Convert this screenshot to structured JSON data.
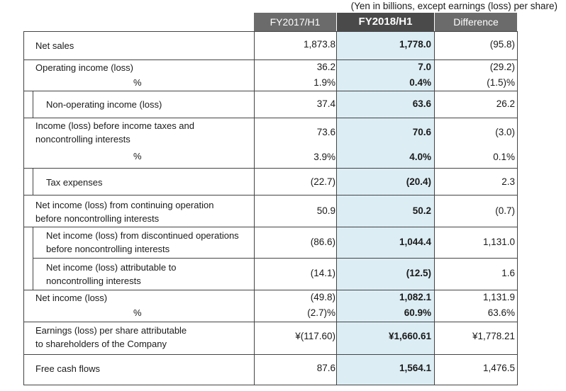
{
  "unit_note": "(Yen in billions, except earnings (loss) per share)",
  "headers": [
    "FY2017/H1",
    "FY2018/H1",
    "Difference"
  ],
  "rows": [
    {
      "label": "Net sales",
      "a": "1,873.8",
      "b": "1,778.0",
      "c": "(95.8)"
    },
    {
      "label": "Operating income (loss)",
      "a": "36.2",
      "b": "7.0",
      "c": "(29.2)",
      "pct_label": "%",
      "pa": "1.9%",
      "pb": "0.4%",
      "pc": "(1.5)%"
    },
    {
      "label": "Non-operating income (loss)",
      "a": "37.4",
      "b": "63.6",
      "c": "26.2"
    },
    {
      "label1": "Income (loss) before income taxes and",
      "label2": "noncontrolling interests",
      "a": "73.6",
      "b": "70.6",
      "c": "(3.0)",
      "pct_label": "%",
      "pa": "3.9%",
      "pb": "4.0%",
      "pc": "0.1%"
    },
    {
      "label": "Tax expenses",
      "a": "(22.7)",
      "b": "(20.4)",
      "c": "2.3"
    },
    {
      "label1": "Net income (loss) from continuing operation",
      "label2": "before noncontrolling interests",
      "a": "50.9",
      "b": "50.2",
      "c": "(0.7)"
    },
    {
      "label1": "Net income (loss) from discontinued operations",
      "label2": "before noncontrolling interests",
      "a": "(86.6)",
      "b": "1,044.4",
      "c": "1,131.0"
    },
    {
      "label1": "Net income (loss) attributable to",
      "label2": "noncontrolling interests",
      "a": "(14.1)",
      "b": "(12.5)",
      "c": "1.6"
    },
    {
      "label": "Net income (loss)",
      "a": "(49.8)",
      "b": "1,082.1",
      "c": "1,131.9",
      "pct_label": "%",
      "pa": "(2.7)%",
      "pb": "60.9%",
      "pc": "63.6%"
    },
    {
      "label1": "Earnings (loss) per share attributable",
      "label2": "to shareholders of the Company",
      "a": "¥(117.60)",
      "b": "¥1,660.61",
      "c": "¥1,778.21"
    },
    {
      "label": "Free cash flows",
      "a": "87.6",
      "b": "1,564.1",
      "c": "1,476.5"
    }
  ]
}
